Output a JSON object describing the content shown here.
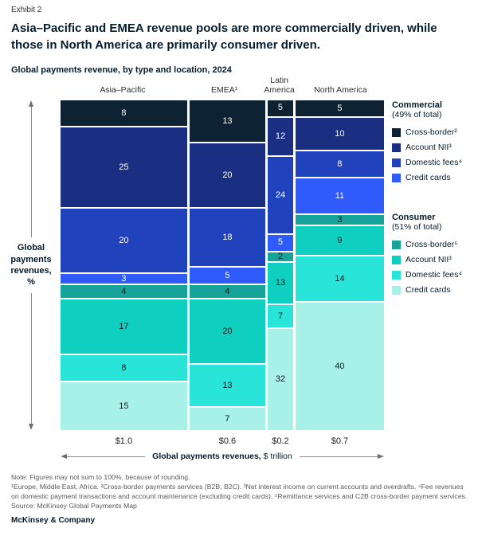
{
  "exhibit_label": "Exhibit 2",
  "title": "Asia–Pacific and EMEA revenue pools are more commercially driven, while those in North America are primarily consumer driven.",
  "subtitle": "Global payments revenue, by type and location, 2024",
  "y_axis_label": "Global payments revenues, %",
  "x_axis_label_bold": "Global payments revenues,",
  "x_axis_label_regular": " $ trillion",
  "chart_data": {
    "type": "mosaic",
    "title": "Global payments revenue, by type and location, 2024",
    "x_unit": "$ trillion",
    "y_unit": "%",
    "columns": [
      {
        "label": "Asia–Pacific",
        "total_label": "$1.0",
        "width_value": 1.0,
        "values": [
          8,
          25,
          20,
          3,
          4,
          17,
          8,
          15
        ]
      },
      {
        "label": "EMEA¹",
        "total_label": "$0.6",
        "width_value": 0.6,
        "values": [
          13,
          20,
          18,
          5,
          4,
          20,
          13,
          7
        ]
      },
      {
        "label": "Latin America",
        "total_label": "$0.2",
        "width_value": 0.2,
        "values": [
          5,
          12,
          24,
          5,
          2,
          13,
          7,
          32
        ]
      },
      {
        "label": "North America",
        "total_label": "$0.7",
        "width_value": 0.7,
        "values": [
          5,
          10,
          8,
          11,
          3,
          9,
          14,
          40
        ]
      }
    ],
    "segments": [
      {
        "id": "commercial-cross-border",
        "label": "Cross-border²",
        "group": "Commercial",
        "color": "#0d2333",
        "text_color": "#ffffff"
      },
      {
        "id": "commercial-account-nii",
        "label": "Account NII³",
        "group": "Commercial",
        "color": "#1b2f82",
        "text_color": "#ffffff"
      },
      {
        "id": "commercial-domestic-fees",
        "label": "Domestic fees⁴",
        "group": "Commercial",
        "color": "#2142bd",
        "text_color": "#ffffff"
      },
      {
        "id": "commercial-credit-cards",
        "label": "Credit cards",
        "group": "Commercial",
        "color": "#2e5bfa",
        "text_color": "#ffffff"
      },
      {
        "id": "consumer-cross-border",
        "label": "Cross-border⁵",
        "group": "Consumer",
        "color": "#16a49a",
        "text_color": "#06221f"
      },
      {
        "id": "consumer-account-nii",
        "label": "Account NII³",
        "group": "Consumer",
        "color": "#0fcfc0",
        "text_color": "#06221f"
      },
      {
        "id": "consumer-domestic-fees",
        "label": "Domestic fees⁴",
        "group": "Consumer",
        "color": "#29e4d8",
        "text_color": "#06221f"
      },
      {
        "id": "consumer-credit-cards",
        "label": "Credit cards",
        "group": "Consumer",
        "color": "#a8f1e8",
        "text_color": "#06221f"
      }
    ]
  },
  "legend": {
    "groups": [
      {
        "title": "Commercial",
        "subtitle": "(49% of total)",
        "items": [
          {
            "label": "Cross-border²",
            "color": "#0d2333"
          },
          {
            "label": "Account NII³",
            "color": "#1b2f82"
          },
          {
            "label": "Domestic fees⁴",
            "color": "#2142bd"
          },
          {
            "label": "Credit cards",
            "color": "#2e5bfa"
          }
        ]
      },
      {
        "title": "Consumer",
        "subtitle": "(51% of total)",
        "items": [
          {
            "label": "Cross-border⁵",
            "color": "#16a49a"
          },
          {
            "label": "Account NII³",
            "color": "#0fcfc0"
          },
          {
            "label": "Domestic fees⁴",
            "color": "#29e4d8"
          },
          {
            "label": "Credit cards",
            "color": "#a8f1e8"
          }
        ]
      }
    ]
  },
  "notes": {
    "note": "Note: Figures may not sum to 100%, because of rounding.",
    "footnotes": "¹Europe, Middle East, Africa. ²Cross-border payments services (B2B, B2C). ³Net interest income on current accounts and overdrafts. ⁴Fee revenues on domestic payment transactions and account maintenance (excluding credit cards). ⁵Remittance services and C2B cross-border payment services.",
    "source": "Source: McKinsey Global Payments Map"
  },
  "brand": "McKinsey & Company"
}
